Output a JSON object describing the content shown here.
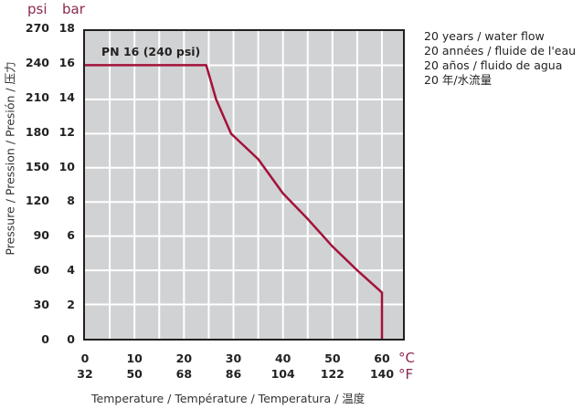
{
  "axes": {
    "y_unit_psi": "psi",
    "y_unit_bar": "bar",
    "x_unit_c": "°C",
    "x_unit_f": "°F",
    "ylabel": "Pressure / Pression / Presión / 压力",
    "xlabel": "Temperature / Température / Temperatura / 温度",
    "psi_ticks": [
      "270",
      "240",
      "210",
      "180",
      "150",
      "120",
      "90",
      "60",
      "30",
      "0"
    ],
    "bar_ticks": [
      "18",
      "16",
      "14",
      "12",
      "10",
      "8",
      "6",
      "4",
      "2",
      "0"
    ],
    "c_ticks": [
      "0",
      "10",
      "20",
      "30",
      "40",
      "50",
      "60"
    ],
    "f_ticks": [
      "32",
      "50",
      "68",
      "86",
      "104",
      "122",
      "140"
    ]
  },
  "annotation": "PN 16 (240 psi)",
  "legend": {
    "lines": [
      "20 years / water flow",
      "20 années / fluide de l'eau",
      "20 años / fluido de agua",
      "20 年/水流量"
    ]
  },
  "colors": {
    "curve": "#a3123a",
    "plot_bg": "#d1d2d4",
    "grid": "#ffffff",
    "unit_text": "#8c2752"
  },
  "chart_data": {
    "type": "line",
    "title": "PN 16 (240 psi)",
    "xlabel": "Temperature / Température / Temperatura / 温度",
    "ylabel": "Pressure / Pression / Presión / 压力",
    "x_unit": "°C",
    "y_unit": "bar",
    "xlim": [
      0,
      65
    ],
    "ylim": [
      0,
      18
    ],
    "grid": true,
    "x_grid_step": 5,
    "y_grid_step": 2,
    "secondary_x_axis": {
      "unit": "°F",
      "ticks": [
        32,
        50,
        68,
        86,
        104,
        122,
        140
      ]
    },
    "secondary_y_axis": {
      "unit": "psi",
      "ticks": [
        0,
        30,
        60,
        90,
        120,
        150,
        180,
        210,
        240,
        270
      ]
    },
    "legend": [
      "20 years / water flow",
      "20 années / fluide de l'eau",
      "20 años / fluido de agua",
      "20 年/水流量"
    ],
    "series": [
      {
        "name": "PN 16 (240 psi), 20 years water flow",
        "x": [
          0,
          24.5,
          26.5,
          29.5,
          35,
          40,
          45,
          50,
          55,
          60,
          60
        ],
        "y": [
          16,
          16,
          14,
          12,
          10.5,
          8.5,
          7.0,
          5.4,
          4.0,
          2.7,
          0
        ]
      }
    ]
  }
}
